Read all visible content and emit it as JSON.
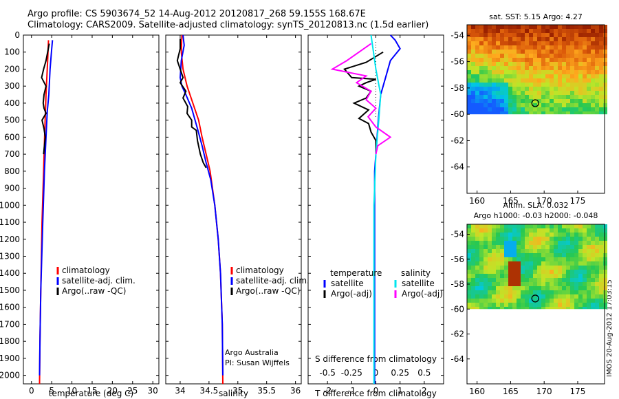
{
  "header": {
    "line1": "Argo profile: CS 5903674_52 14-Aug-2012 20120817_268 59.155S 168.67E",
    "line2": "Climatology: CARS2009. Satellite-adjusted climatology: synTS_20120813.nc (1.5d earlier)"
  },
  "footer_stamp": "IMOS 20-Aug-2012 17:03:15",
  "colors": {
    "climatology": "#ff0000",
    "satellite": "#0000ff",
    "argo": "#000000",
    "magenta": "#ff00ff",
    "cyan": "#00e5ee"
  },
  "chart_data": [
    {
      "type": "line",
      "xlabel": "temperature (deg C)",
      "ylim": [
        0,
        2050
      ],
      "y_ticks": [
        0,
        100,
        200,
        300,
        400,
        500,
        600,
        700,
        800,
        900,
        1000,
        1100,
        1200,
        1300,
        1400,
        1500,
        1600,
        1700,
        1800,
        1900,
        2000
      ],
      "xlim": [
        -2,
        31.5
      ],
      "x_ticks": [
        0,
        5,
        10,
        15,
        20,
        25,
        30
      ],
      "legend": {
        "placement": "bottom-center",
        "entries": [
          "climatology",
          "satellite-adj. clim.",
          "Argo(..raw -QC)"
        ]
      },
      "series": [
        {
          "name": "climatology",
          "color_key": "climatology",
          "points": [
            [
              4.2,
              30
            ],
            [
              4.0,
              150
            ],
            [
              3.6,
              350
            ],
            [
              3.3,
              550
            ],
            [
              3.0,
              800
            ],
            [
              2.6,
              1100
            ],
            [
              2.3,
              1500
            ],
            [
              2.1,
              1800
            ],
            [
              2.0,
              2050
            ]
          ]
        },
        {
          "name": "satellite-adj. clim.",
          "color_key": "satellite",
          "points": [
            [
              5.2,
              30
            ],
            [
              5.0,
              80
            ],
            [
              4.6,
              200
            ],
            [
              4.3,
              350
            ],
            [
              3.9,
              450
            ],
            [
              3.6,
              600
            ],
            [
              3.2,
              800
            ],
            [
              2.8,
              1100
            ],
            [
              2.3,
              1500
            ],
            [
              2.1,
              1800
            ],
            [
              2.0,
              2000
            ]
          ]
        },
        {
          "name": "Argo(..raw -QC)",
          "color_key": "argo",
          "points": [
            [
              4.4,
              50
            ],
            [
              4.0,
              100
            ],
            [
              3.6,
              150
            ],
            [
              3.0,
              200
            ],
            [
              2.5,
              250
            ],
            [
              3.6,
              300
            ],
            [
              3.1,
              350
            ],
            [
              2.9,
              400
            ],
            [
              3.1,
              430
            ],
            [
              3.6,
              460
            ],
            [
              2.6,
              500
            ],
            [
              3.1,
              550
            ],
            [
              3.4,
              600
            ],
            [
              3.2,
              650
            ],
            [
              3.0,
              700
            ]
          ]
        }
      ]
    },
    {
      "type": "line",
      "xlabel": "salinity",
      "ylim": [
        0,
        2050
      ],
      "xlim": [
        33.75,
        36.1
      ],
      "x_ticks": [
        34,
        34.5,
        35,
        35.5,
        36
      ],
      "legend": {
        "placement": "bottom-center",
        "entries": [
          "climatology",
          "satellite-adj. clim.",
          "Argo(..raw -QC)"
        ]
      },
      "annotation": [
        "Argo Australia",
        "PI: Susan Wijffels"
      ],
      "series": [
        {
          "name": "climatology",
          "color_key": "climatology",
          "points": [
            [
              34.03,
              0
            ],
            [
              34.02,
              100
            ],
            [
              34.05,
              200
            ],
            [
              34.12,
              300
            ],
            [
              34.22,
              400
            ],
            [
              34.32,
              500
            ],
            [
              34.38,
              600
            ],
            [
              34.45,
              700
            ],
            [
              34.52,
              800
            ],
            [
              34.6,
              1000
            ],
            [
              34.66,
              1200
            ],
            [
              34.7,
              1400
            ],
            [
              34.73,
              1700
            ],
            [
              34.74,
              2050
            ]
          ]
        },
        {
          "name": "satellite-adj. clim.",
          "color_key": "satellite",
          "points": [
            [
              34.05,
              0
            ],
            [
              34.07,
              60
            ],
            [
              34.02,
              150
            ],
            [
              34.0,
              250
            ],
            [
              34.03,
              300
            ],
            [
              34.1,
              350
            ],
            [
              34.2,
              430
            ],
            [
              34.3,
              550
            ],
            [
              34.38,
              650
            ],
            [
              34.45,
              750
            ],
            [
              34.53,
              850
            ],
            [
              34.6,
              1000
            ],
            [
              34.66,
              1200
            ],
            [
              34.7,
              1400
            ],
            [
              34.73,
              1700
            ],
            [
              34.74,
              2000
            ]
          ]
        },
        {
          "name": "Argo(..raw -QC)",
          "color_key": "argo",
          "points": [
            [
              34.0,
              20
            ],
            [
              34.0,
              80
            ],
            [
              33.95,
              150
            ],
            [
              34.0,
              200
            ],
            [
              34.05,
              250
            ],
            [
              34.0,
              280
            ],
            [
              34.1,
              330
            ],
            [
              34.05,
              370
            ],
            [
              34.13,
              420
            ],
            [
              34.12,
              460
            ],
            [
              34.2,
              500
            ],
            [
              34.2,
              540
            ],
            [
              34.28,
              560
            ],
            [
              34.3,
              620
            ],
            [
              34.35,
              700
            ],
            [
              34.4,
              750
            ],
            [
              34.45,
              780
            ]
          ]
        }
      ]
    },
    {
      "type": "line",
      "xlabel": "T difference from climatology",
      "x2label": "S difference from climatology",
      "ylim": [
        0,
        2050
      ],
      "xlim": [
        -2.8,
        2.8
      ],
      "x_ticks": [
        -2,
        -1,
        0,
        1,
        2
      ],
      "x2_ticks": [
        -0.5,
        -0.25,
        0,
        0.25,
        0.5
      ],
      "x2lim": [
        -0.7,
        0.7
      ],
      "legend": {
        "placement": "bottom-center",
        "temperature_header": "temperature",
        "salinity_header": "salinity",
        "entries": [
          "satellite",
          "Argo(-adj)",
          "satellite",
          "Argo(-adj)"
        ]
      },
      "series": [
        {
          "name": "satellite",
          "group": "temperature",
          "color_key": "satellite",
          "points": [
            [
              0.6,
              0
            ],
            [
              0.8,
              30
            ],
            [
              1.0,
              80
            ],
            [
              0.6,
              150
            ],
            [
              0.4,
              250
            ],
            [
              0.2,
              350
            ],
            [
              0.1,
              500
            ],
            [
              0.0,
              700
            ],
            [
              -0.05,
              800
            ],
            [
              -0.05,
              1000
            ],
            [
              -0.05,
              1400
            ],
            [
              -0.05,
              2050
            ]
          ]
        },
        {
          "name": "Argo(-adj)",
          "group": "temperature",
          "color_key": "argo",
          "points": [
            [
              0.3,
              100
            ],
            [
              -0.4,
              160
            ],
            [
              -1.3,
              200
            ],
            [
              -1.0,
              250
            ],
            [
              0.0,
              260
            ],
            [
              -0.4,
              280
            ],
            [
              -0.7,
              300
            ],
            [
              -0.2,
              330
            ],
            [
              -0.4,
              370
            ],
            [
              -0.9,
              400
            ],
            [
              -0.3,
              440
            ],
            [
              -0.7,
              490
            ],
            [
              -0.3,
              520
            ],
            [
              -0.2,
              570
            ],
            [
              0.0,
              620
            ],
            [
              0.0,
              700
            ]
          ]
        },
        {
          "name": "satellite",
          "group": "salinity",
          "color_key": "cyan",
          "points": [
            [
              -0.05,
              0
            ],
            [
              0.0,
              200
            ],
            [
              0.05,
              350
            ],
            [
              0.03,
              500
            ],
            [
              0.0,
              700
            ],
            [
              -0.02,
              1000
            ],
            [
              -0.02,
              1400
            ],
            [
              -0.02,
              2050
            ]
          ]
        },
        {
          "name": "Argo(-adj)",
          "group": "salinity",
          "color_key": "magenta",
          "points": [
            [
              -0.05,
              50
            ],
            [
              -0.3,
              150
            ],
            [
              -0.45,
              200
            ],
            [
              -0.1,
              240
            ],
            [
              -0.2,
              280
            ],
            [
              -0.05,
              330
            ],
            [
              -0.1,
              380
            ],
            [
              0.0,
              430
            ],
            [
              -0.08,
              480
            ],
            [
              0.0,
              540
            ],
            [
              0.15,
              600
            ],
            [
              0.02,
              650
            ],
            [
              0.0,
              700
            ]
          ]
        }
      ]
    },
    {
      "type": "heatmap",
      "title": "sat. SST: 5.15 Argo: 4.27",
      "xlim": [
        158.5,
        179
      ],
      "ylim": [
        -66,
        -53.2
      ],
      "x_ticks": [
        160,
        165,
        170,
        175
      ],
      "y_ticks": [
        -54,
        -56,
        -58,
        -60,
        -62,
        -64
      ],
      "marker": {
        "lon": 168.67,
        "lat": -59.155
      }
    },
    {
      "type": "heatmap",
      "title": "Altim. SLA: 0.032",
      "subtitle": "Argo h1000: -0.03 h2000: -0.048",
      "xlim": [
        158.5,
        179
      ],
      "ylim": [
        -66,
        -53.2
      ],
      "x_ticks": [
        160,
        165,
        170,
        175
      ],
      "y_ticks": [
        -54,
        -56,
        -58,
        -60,
        -62,
        -64
      ],
      "marker": {
        "lon": 168.67,
        "lat": -59.155
      }
    }
  ]
}
